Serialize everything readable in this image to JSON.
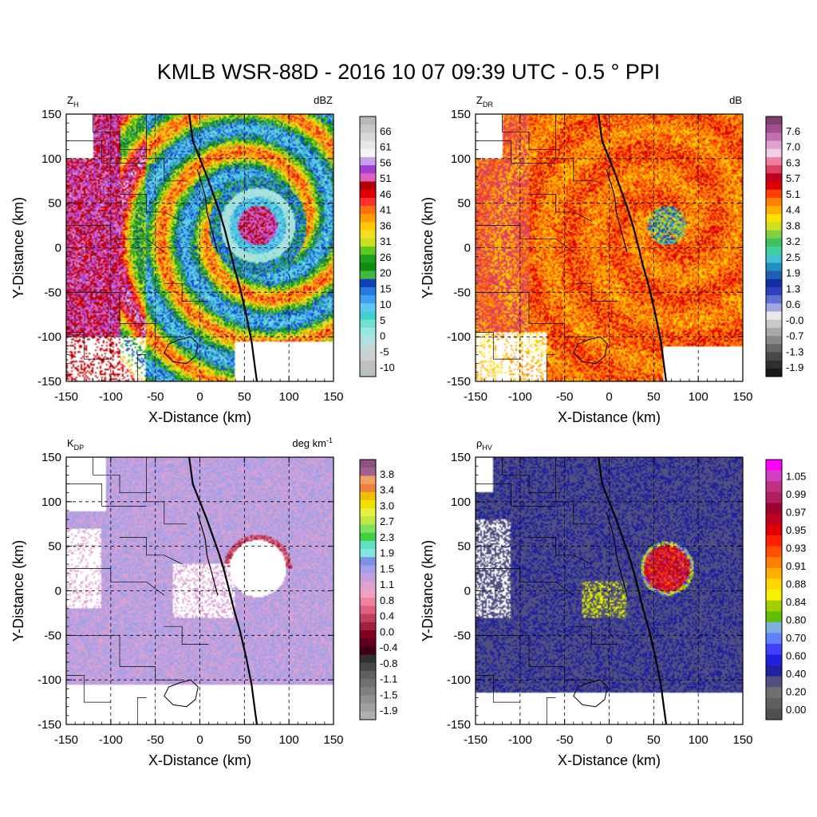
{
  "title": "KMLB WSR-88D - 2016 10 07 09:39 UTC - 0.5 ° PPI",
  "chart_data": [
    {
      "type": "heatmap",
      "variable_symbol": "Z",
      "variable_subscript": "H",
      "units": "dBZ",
      "units_superscript": "",
      "xlabel": "X-Distance (km)",
      "ylabel": "Y-Distance (km)",
      "xlim": [
        -150,
        150
      ],
      "ylim": [
        -150,
        150
      ],
      "xticks": [
        "-150",
        "-100",
        "-50",
        "0",
        "50",
        "100",
        "150"
      ],
      "yticks": [
        "150",
        "100",
        "50",
        "0",
        "-50",
        "-100",
        "-150"
      ],
      "grid": true,
      "field": "reflectivity",
      "colorbar_labels": [
        "66",
        "61",
        "56",
        "51",
        "46",
        "41",
        "36",
        "31",
        "26",
        "20",
        "15",
        "10",
        "5",
        "0",
        "-5",
        "-10"
      ],
      "colorbar_colors": [
        "#b8b8b8",
        "#c8c8c8",
        "#d8d8d8",
        "#e8e8e8",
        "#f4f4f4",
        "#c8a0e8",
        "#a040d8",
        "#e060c0",
        "#b00000",
        "#e00000",
        "#ff3030",
        "#ff7010",
        "#ff9c00",
        "#ffc800",
        "#f0e020",
        "#c8e020",
        "#60c820",
        "#20a020",
        "#108c10",
        "#40b840",
        "#1040c0",
        "#2878e0",
        "#40a0f0",
        "#60c8f0",
        "#40d0d0",
        "#70e0d0",
        "#98e8e0",
        "#b0e0e0",
        "#c0d8d8",
        "#c8d0d0",
        "#c0c0c0",
        "#b8c0c0"
      ]
    },
    {
      "type": "heatmap",
      "variable_symbol": "Z",
      "variable_subscript": "DR",
      "units": "dB",
      "units_superscript": "",
      "xlabel": "X-Distance (km)",
      "ylabel": "Y-Distance (km)",
      "xlim": [
        -150,
        150
      ],
      "ylim": [
        -150,
        150
      ],
      "xticks": [
        "-150",
        "-100",
        "-50",
        "0",
        "50",
        "100",
        "150"
      ],
      "yticks": [
        "150",
        "100",
        "50",
        "0",
        "-50",
        "-100",
        "-150"
      ],
      "grid": true,
      "field": "zdr",
      "colorbar_labels": [
        "7.6",
        "7.0",
        "6.3",
        "5.7",
        "5.1",
        "4.4",
        "3.8",
        "3.2",
        "2.5",
        "1.9",
        "1.3",
        "0.6",
        "-0.0",
        "-0.7",
        "-1.3",
        "-1.9"
      ],
      "colorbar_colors": [
        "#804070",
        "#a05090",
        "#c070b0",
        "#e0a0d0",
        "#f0d0e8",
        "#f080a0",
        "#e04060",
        "#c00020",
        "#e00000",
        "#ff4000",
        "#ff8000",
        "#ffb000",
        "#ffe000",
        "#d0e020",
        "#80d040",
        "#40c060",
        "#40d0a0",
        "#40c0d0",
        "#2090c0",
        "#2060b0",
        "#1030a0",
        "#3040c0",
        "#6070d0",
        "#a0a8e0",
        "#e8e8e8",
        "#c8c8c8",
        "#a8a8a8",
        "#888888",
        "#686868",
        "#484848",
        "#303030",
        "#181818"
      ]
    },
    {
      "type": "heatmap",
      "variable_symbol": "K",
      "variable_subscript": "DP",
      "units": "deg km",
      "units_superscript": "-1",
      "xlabel": "X-Distance (km)",
      "ylabel": "Y-Distance (km)",
      "xlim": [
        -150,
        150
      ],
      "ylim": [
        -150,
        150
      ],
      "xticks": [
        "-150",
        "-100",
        "-50",
        "0",
        "50",
        "100",
        "150"
      ],
      "yticks": [
        "150",
        "100",
        "50",
        "0",
        "-50",
        "-100",
        "-150"
      ],
      "grid": true,
      "field": "kdp",
      "colorbar_labels": [
        "3.8",
        "3.4",
        "3.0",
        "2.7",
        "2.3",
        "1.9",
        "1.5",
        "1.1",
        "0.8",
        "0.4",
        "0.0",
        "-0.4",
        "-0.8",
        "-1.1",
        "-1.5",
        "-1.9"
      ],
      "colorbar_colors": [
        "#905080",
        "#a06090",
        "#f0a060",
        "#f08040",
        "#f0c000",
        "#f0e000",
        "#e8f040",
        "#c0e840",
        "#80e060",
        "#40d040",
        "#60e0c0",
        "#80e8e0",
        "#8090e0",
        "#a0a0e8",
        "#c0a0e0",
        "#e0a0d0",
        "#f0a0c0",
        "#f080a0",
        "#e06080",
        "#c04060",
        "#a02040",
        "#800020",
        "#600020",
        "#400010",
        "#303030",
        "#484848",
        "#606060",
        "#707070",
        "#808080",
        "#909090",
        "#a0a0a0",
        "#b0b0b0"
      ]
    },
    {
      "type": "heatmap",
      "variable_symbol": "ρ",
      "variable_subscript": "HV",
      "units": "",
      "units_superscript": "",
      "xlabel": "X-Distance (km)",
      "ylabel": "Y-Distance (km)",
      "xlim": [
        -150,
        150
      ],
      "ylim": [
        -150,
        150
      ],
      "xticks": [
        "-150",
        "-100",
        "-50",
        "0",
        "50",
        "100",
        "150"
      ],
      "yticks": [
        "150",
        "100",
        "50",
        "0",
        "-50",
        "-100",
        "-150"
      ],
      "grid": true,
      "field": "rhohv",
      "colorbar_labels": [
        "1.05",
        "0.99",
        "0.97",
        "0.95",
        "0.93",
        "0.91",
        "0.88",
        "0.84",
        "0.80",
        "0.70",
        "0.60",
        "0.40",
        "0.20",
        "0.00"
      ],
      "colorbar_colors": [
        "#ff00ff",
        "#d040c0",
        "#c03080",
        "#b02060",
        "#a00030",
        "#c00020",
        "#e00000",
        "#ff2000",
        "#ff5000",
        "#ff8000",
        "#ffb000",
        "#ffd800",
        "#f8f000",
        "#a0d000",
        "#60c000",
        "#80b0e0",
        "#6080ff",
        "#4040ff",
        "#2020e0",
        "#2020a0",
        "#505080",
        "#707070",
        "#606060",
        "#505050"
      ]
    }
  ]
}
